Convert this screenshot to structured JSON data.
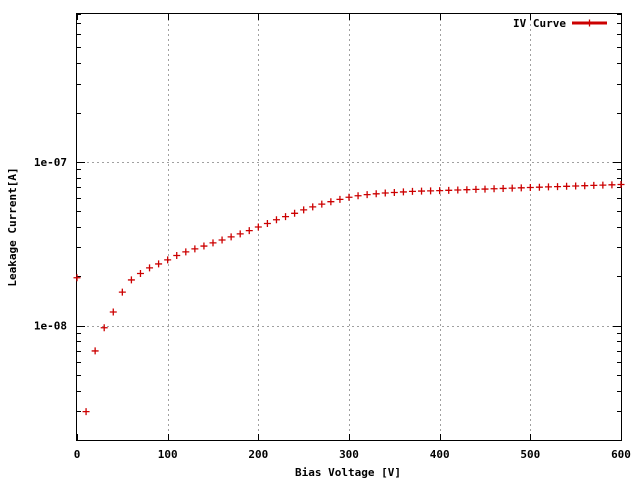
{
  "chart_data": {
    "type": "scatter",
    "title": "",
    "xlabel": "Bias Voltage [V]",
    "ylabel": "Leakage Current[A]",
    "xlim": [
      0,
      600
    ],
    "ylim": [
      2e-09,
      8e-07
    ],
    "yscale": "log",
    "grid": true,
    "legend_position": "top-right",
    "x_ticks": [
      0,
      100,
      200,
      300,
      400,
      500,
      600
    ],
    "x_tick_labels": [
      "0",
      "100",
      "200",
      "300",
      "400",
      "500",
      "600"
    ],
    "y_ticks": [
      1e-08,
      1e-07
    ],
    "y_tick_labels": [
      "1e-08",
      "1e-07"
    ],
    "series": [
      {
        "name": "IV Curve",
        "color": "#cc0000",
        "marker": "plus",
        "x": [
          0,
          10,
          20,
          30,
          40,
          50,
          60,
          70,
          80,
          90,
          100,
          110,
          120,
          130,
          140,
          150,
          160,
          170,
          180,
          190,
          200,
          210,
          220,
          230,
          240,
          250,
          260,
          270,
          280,
          290,
          300,
          310,
          320,
          330,
          340,
          350,
          360,
          370,
          380,
          390,
          400,
          410,
          420,
          430,
          440,
          450,
          460,
          470,
          480,
          490,
          500,
          510,
          520,
          530,
          540,
          550,
          560,
          570,
          580,
          590,
          600
        ],
        "y": [
          1.96e-08,
          2.98e-09,
          7e-09,
          9.7e-09,
          1.21e-08,
          1.6e-08,
          1.9e-08,
          2.08e-08,
          2.25e-08,
          2.38e-08,
          2.52e-08,
          2.68e-08,
          2.82e-08,
          2.94e-08,
          3.06e-08,
          3.2e-08,
          3.33e-08,
          3.48e-08,
          3.63e-08,
          3.8e-08,
          4e-08,
          4.2e-08,
          4.43e-08,
          4.63e-08,
          4.85e-08,
          5.09e-08,
          5.31e-08,
          5.52e-08,
          5.71e-08,
          5.9e-08,
          6.08e-08,
          6.21e-08,
          6.31e-08,
          6.38e-08,
          6.45e-08,
          6.5e-08,
          6.55e-08,
          6.6e-08,
          6.63e-08,
          6.65e-08,
          6.67e-08,
          6.7e-08,
          6.73e-08,
          6.76e-08,
          6.79e-08,
          6.82e-08,
          6.85e-08,
          6.88e-08,
          6.91e-08,
          6.94e-08,
          6.97e-08,
          7e-08,
          7.03e-08,
          7.06e-08,
          7.09e-08,
          7.12e-08,
          7.15e-08,
          7.18e-08,
          7.21e-08,
          7.24e-08,
          7.27e-08
        ]
      }
    ]
  }
}
